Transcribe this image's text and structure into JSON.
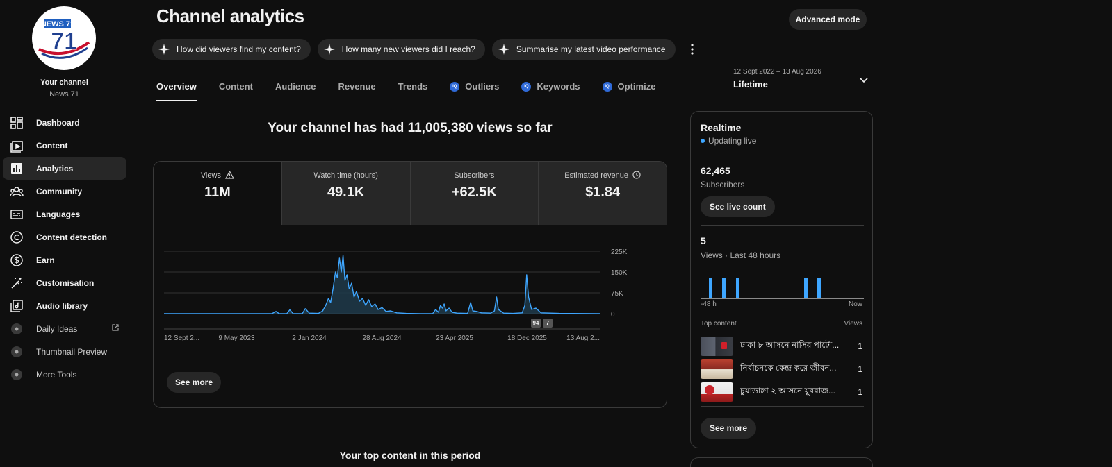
{
  "sidebar": {
    "avatar_text": "NEWS 71",
    "your_channel": "Your channel",
    "channel_name": "News 71",
    "items": [
      {
        "label": "Dashboard",
        "icon": "dashboard-icon"
      },
      {
        "label": "Content",
        "icon": "content-icon"
      },
      {
        "label": "Analytics",
        "icon": "analytics-icon",
        "active": true
      },
      {
        "label": "Community",
        "icon": "community-icon"
      },
      {
        "label": "Languages",
        "icon": "languages-icon"
      },
      {
        "label": "Content detection",
        "icon": "copyright-icon"
      },
      {
        "label": "Earn",
        "icon": "dollar-icon"
      },
      {
        "label": "Customisation",
        "icon": "magic-wand-icon"
      },
      {
        "label": "Audio library",
        "icon": "audio-library-icon"
      }
    ],
    "tools": [
      {
        "label": "Daily Ideas",
        "external": true
      },
      {
        "label": "Thumbnail Preview",
        "external": false
      },
      {
        "label": "More Tools",
        "external": false
      }
    ]
  },
  "header": {
    "title": "Channel analytics",
    "advanced_mode": "Advanced mode",
    "chips": [
      "How did viewers find my content?",
      "How many new viewers did I reach?",
      "Summarise my latest video performance"
    ],
    "tabs": [
      {
        "label": "Overview",
        "active": true,
        "ext": false
      },
      {
        "label": "Content",
        "active": false,
        "ext": false
      },
      {
        "label": "Audience",
        "active": false,
        "ext": false
      },
      {
        "label": "Revenue",
        "active": false,
        "ext": false
      },
      {
        "label": "Trends",
        "active": false,
        "ext": false
      },
      {
        "label": "Outliers",
        "active": false,
        "ext": true
      },
      {
        "label": "Keywords",
        "active": false,
        "ext": true
      },
      {
        "label": "Optimize",
        "active": false,
        "ext": true
      }
    ],
    "date_range": {
      "sub": "12 Sept 2022 – 13 Aug 2026",
      "main": "Lifetime"
    }
  },
  "main": {
    "headline": "Your channel has had 11,005,380 views so far",
    "metrics": [
      {
        "label": "Views",
        "value": "11M",
        "icon": "warning-icon"
      },
      {
        "label": "Watch time (hours)",
        "value": "49.1K",
        "icon": ""
      },
      {
        "label": "Subscribers",
        "value": "+62.5K",
        "icon": ""
      },
      {
        "label": "Estimated revenue",
        "value": "$1.84",
        "icon": "clock-icon"
      }
    ],
    "see_more": "See more",
    "badges": [
      "94",
      "7"
    ],
    "top_content_title": "Your top content in this period"
  },
  "chart_data": {
    "type": "area",
    "metric": "Views",
    "x_tick_labels": [
      "12 Sept 2...",
      "9 May 2023",
      "2 Jan 2024",
      "28 Aug 2024",
      "23 Apr 2025",
      "18 Dec 2025",
      "13 Aug 2..."
    ],
    "y_tick_labels": [
      "225K",
      "150K",
      "75K",
      "0"
    ],
    "ylim": [
      0,
      225000
    ],
    "grid": true,
    "series_color": "#3ea6ff",
    "points": [
      [
        "2022-09-12",
        0
      ],
      [
        "2023-01-01",
        0
      ],
      [
        "2023-05-09",
        0
      ],
      [
        "2023-09-01",
        0
      ],
      [
        "2023-09-15",
        8000
      ],
      [
        "2023-09-25",
        0
      ],
      [
        "2023-10-20",
        0
      ],
      [
        "2023-10-30",
        14000
      ],
      [
        "2023-11-10",
        0
      ],
      [
        "2023-12-10",
        0
      ],
      [
        "2023-12-20",
        18000
      ],
      [
        "2024-01-02",
        2000
      ],
      [
        "2024-02-01",
        1000
      ],
      [
        "2024-02-15",
        10000
      ],
      [
        "2024-02-25",
        30000
      ],
      [
        "2024-03-05",
        55000
      ],
      [
        "2024-03-12",
        40000
      ],
      [
        "2024-03-20",
        90000
      ],
      [
        "2024-03-28",
        150000
      ],
      [
        "2024-04-03",
        130000
      ],
      [
        "2024-04-10",
        200000
      ],
      [
        "2024-04-16",
        150000
      ],
      [
        "2024-04-22",
        210000
      ],
      [
        "2024-04-28",
        120000
      ],
      [
        "2024-05-05",
        140000
      ],
      [
        "2024-05-12",
        90000
      ],
      [
        "2024-05-20",
        110000
      ],
      [
        "2024-05-28",
        60000
      ],
      [
        "2024-06-05",
        80000
      ],
      [
        "2024-06-15",
        45000
      ],
      [
        "2024-06-25",
        55000
      ],
      [
        "2024-07-05",
        30000
      ],
      [
        "2024-07-15",
        50000
      ],
      [
        "2024-07-25",
        25000
      ],
      [
        "2024-08-05",
        35000
      ],
      [
        "2024-08-15",
        15000
      ],
      [
        "2024-08-28",
        22000
      ],
      [
        "2024-09-10",
        8000
      ],
      [
        "2024-09-25",
        10000
      ],
      [
        "2024-10-15",
        3000
      ],
      [
        "2024-11-15",
        1000
      ],
      [
        "2025-01-01",
        0
      ],
      [
        "2025-02-10",
        0
      ],
      [
        "2025-02-20",
        15000
      ],
      [
        "2025-03-01",
        5000
      ],
      [
        "2025-03-08",
        30000
      ],
      [
        "2025-03-14",
        20000
      ],
      [
        "2025-03-20",
        35000
      ],
      [
        "2025-03-26",
        10000
      ],
      [
        "2025-04-05",
        20000
      ],
      [
        "2025-04-15",
        5000
      ],
      [
        "2025-05-01",
        2000
      ],
      [
        "2025-06-05",
        1000
      ],
      [
        "2025-06-15",
        40000
      ],
      [
        "2025-06-22",
        10000
      ],
      [
        "2025-07-05",
        8000
      ],
      [
        "2025-07-20",
        3000
      ],
      [
        "2025-08-20",
        2000
      ],
      [
        "2025-09-01",
        10000
      ],
      [
        "2025-09-08",
        60000
      ],
      [
        "2025-09-14",
        15000
      ],
      [
        "2025-10-01",
        2000
      ],
      [
        "2025-11-01",
        1000
      ],
      [
        "2025-12-01",
        3000
      ],
      [
        "2025-12-10",
        30000
      ],
      [
        "2025-12-16",
        140000
      ],
      [
        "2025-12-22",
        60000
      ],
      [
        "2026-01-01",
        15000
      ],
      [
        "2026-01-15",
        20000
      ],
      [
        "2026-02-01",
        3000
      ],
      [
        "2026-04-01",
        1000
      ],
      [
        "2026-08-13",
        0
      ]
    ]
  },
  "realtime": {
    "title": "Realtime",
    "status": "Updating live",
    "subscribers_value": "62,465",
    "subscribers_label": "Subscribers",
    "see_live_count": "See live count",
    "views_value": "5",
    "views_label": "Views · Last 48 hours",
    "axis_left": "-48 h",
    "axis_right": "Now",
    "hourly_bars": [
      0,
      0,
      1,
      0,
      0,
      0,
      1,
      0,
      0,
      0,
      1,
      0,
      0,
      0,
      0,
      0,
      0,
      0,
      0,
      0,
      0,
      0,
      0,
      0,
      0,
      0,
      0,
      0,
      0,
      0,
      1,
      0,
      0,
      0,
      1,
      0,
      0,
      0,
      0,
      0,
      0,
      0,
      0,
      0,
      0,
      0,
      0,
      0
    ],
    "top_content_label": "Top content",
    "views_col": "Views",
    "items": [
      {
        "title": "ঢাকা ৮ আসনে নাসির পাটো...",
        "views": "1"
      },
      {
        "title": "নির্বাচনকে কেন্দ্র করে জীবন...",
        "views": "1"
      },
      {
        "title": "চুয়াডাঙ্গা ২ আসনে যুবরাজ...",
        "views": "1"
      }
    ],
    "see_more": "See more"
  }
}
